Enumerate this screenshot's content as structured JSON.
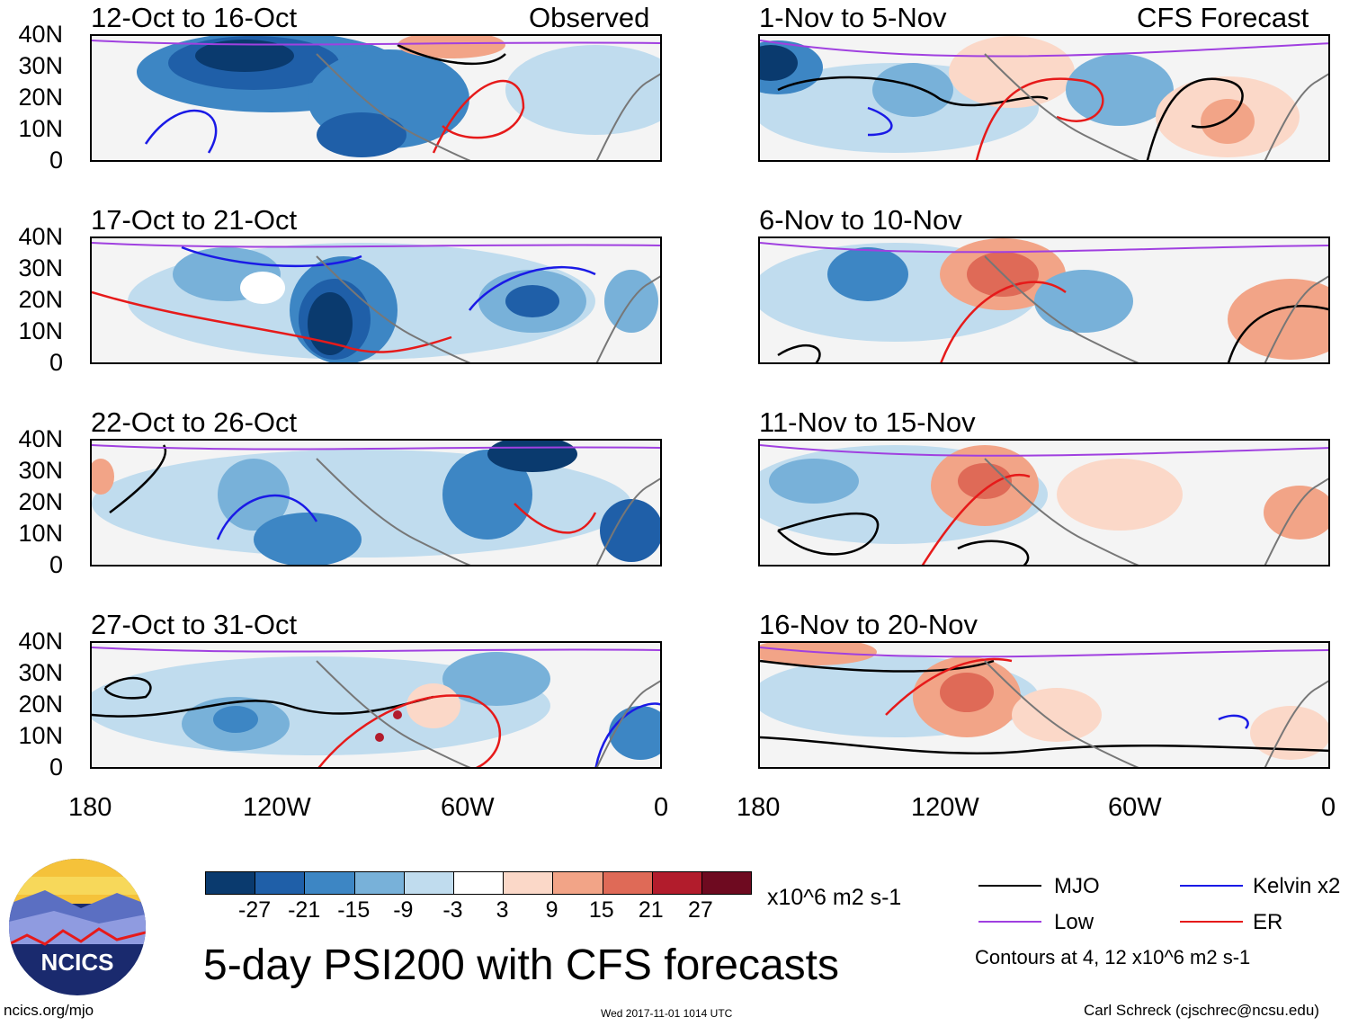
{
  "main_title": "5-day PSI200 with CFS forecasts",
  "left_header": "Observed",
  "right_header": "CFS Forecast",
  "left_panels": [
    "12-Oct to 16-Oct",
    "17-Oct to 21-Oct",
    "22-Oct to 26-Oct",
    "27-Oct to 31-Oct"
  ],
  "right_panels": [
    "1-Nov to 5-Nov",
    "6-Nov to 10-Nov",
    "11-Nov to 15-Nov",
    "16-Nov to 20-Nov"
  ],
  "lat_labels": [
    "40N",
    "30N",
    "20N",
    "10N",
    "0"
  ],
  "lon_labels": [
    "180",
    "120W",
    "60W",
    "0"
  ],
  "colorbar": {
    "colors": [
      "#0a3a6e",
      "#1f5fa8",
      "#3d86c4",
      "#78b1d9",
      "#c0dcee",
      "#ffffff",
      "#fbd8c8",
      "#f2a487",
      "#df6a57",
      "#b21c2c",
      "#6e0a20"
    ],
    "labels": [
      "-27",
      "-21",
      "-15",
      "-9",
      "-3",
      "3",
      "9",
      "15",
      "21",
      "27"
    ],
    "units": "x10^6 m2 s-1"
  },
  "legend": {
    "mjo": "MJO",
    "kelvin": "Kelvin x2",
    "low": "Low",
    "er": "ER",
    "contours": "Contours at 4, 12 x10^6 m2 s-1",
    "colors": {
      "mjo": "#000000",
      "kelvin": "#1a1ae6",
      "low": "#a040e0",
      "er": "#e61a1a"
    }
  },
  "logo_text": "NCICS",
  "footer": {
    "url": "ncics.org/mjo",
    "timestamp": "Wed 2017-11-01 1014 UTC",
    "credit": "Carl Schreck (cjschrec@ncsu.edu)"
  }
}
